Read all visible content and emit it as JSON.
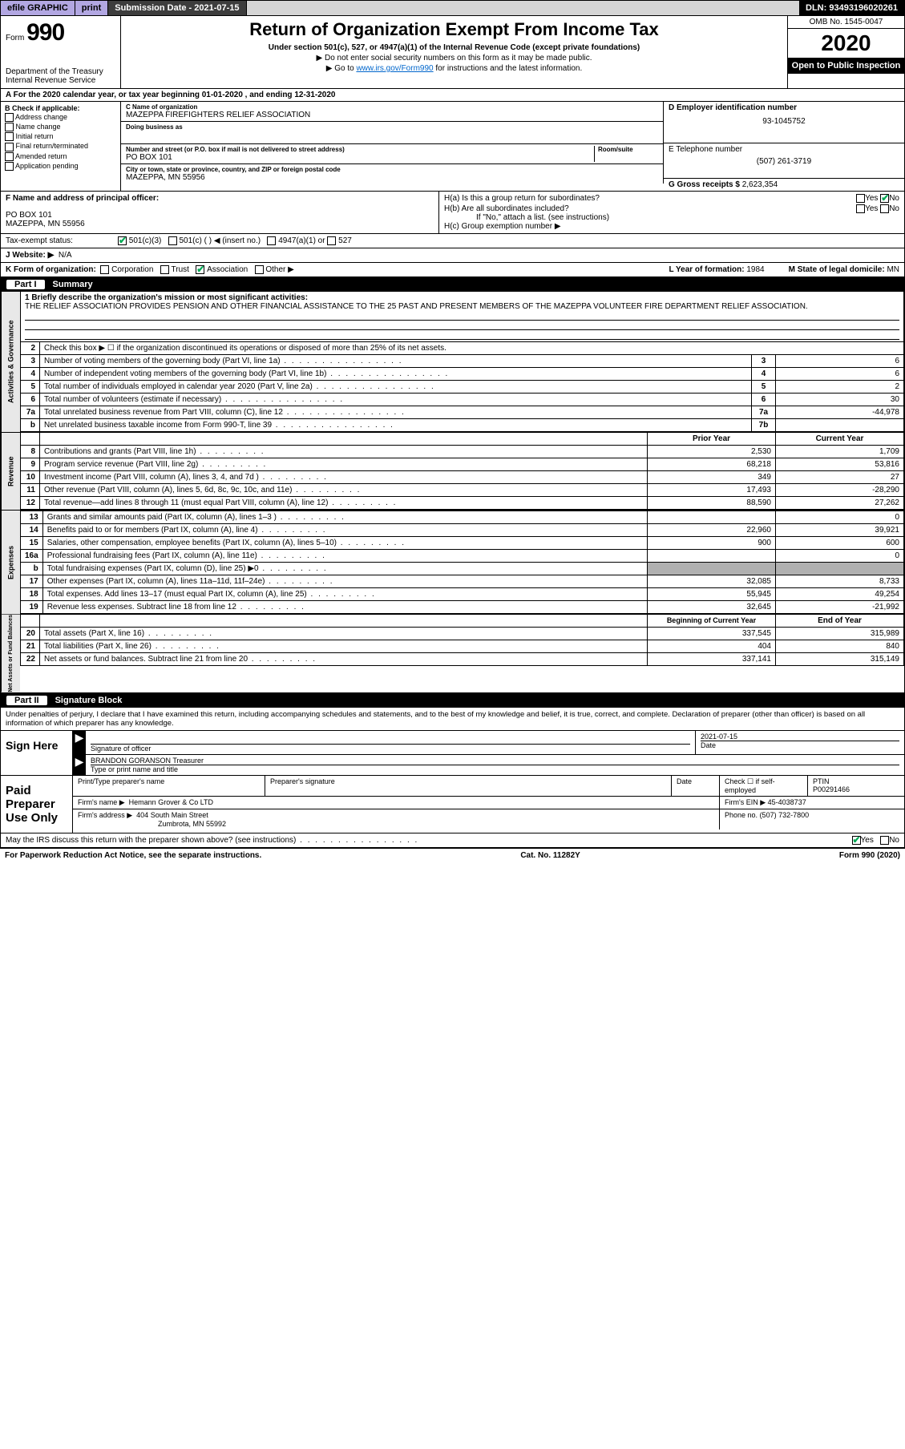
{
  "topbar": {
    "efile": "efile GRAPHIC",
    "print": "print",
    "submission": "Submission Date - 2021-07-15",
    "dln": "DLN: 93493196020261"
  },
  "header": {
    "form_label": "Form",
    "form_number": "990",
    "dept": "Department of the Treasury",
    "irs": "Internal Revenue Service",
    "title": "Return of Organization Exempt From Income Tax",
    "subtitle": "Under section 501(c), 527, or 4947(a)(1) of the Internal Revenue Code (except private foundations)",
    "note1": "▶ Do not enter social security numbers on this form as it may be made public.",
    "note2a": "▶ Go to ",
    "note2b": "www.irs.gov/Form990",
    "note2c": " for instructions and the latest information.",
    "omb": "OMB No. 1545-0047",
    "year": "2020",
    "open": "Open to Public Inspection"
  },
  "period": "A For the 2020 calendar year, or tax year beginning 01-01-2020    , and ending 12-31-2020",
  "colB": {
    "title": "B Check if applicable:",
    "items": [
      "Address change",
      "Name change",
      "Initial return",
      "Final return/terminated",
      "Amended return",
      "Application pending"
    ]
  },
  "orgblock": {
    "c_lbl": "C Name of organization",
    "c_val": "MAZEPPA FIREFIGHTERS RELIEF ASSOCIATION",
    "dba_lbl": "Doing business as",
    "addr_lbl": "Number and street (or P.O. box if mail is not delivered to street address)",
    "room_lbl": "Room/suite",
    "addr_val": "PO BOX 101",
    "city_lbl": "City or town, state or province, country, and ZIP or foreign postal code",
    "city_val": "MAZEPPA, MN  55956",
    "d_lbl": "D Employer identification number",
    "d_val": "93-1045752",
    "e_lbl": "E Telephone number",
    "e_val": "(507) 261-3719",
    "g_lbl": "G Gross receipts $",
    "g_val": "2,623,354"
  },
  "frow": {
    "f_lbl": "F  Name and address of principal officer:",
    "f_val1": "PO BOX 101",
    "f_val2": "MAZEPPA, MN  55956",
    "ha": "H(a)  Is this a group return for subordinates?",
    "hb": "H(b)  Are all subordinates included?",
    "hb_note": "If \"No,\" attach a list. (see instructions)",
    "hc": "H(c)  Group exemption number ▶",
    "yes": "Yes",
    "no": "No"
  },
  "status": {
    "lbl": "Tax-exempt status:",
    "a": "501(c)(3)",
    "b": "501(c) (   ) ◀ (insert no.)",
    "c": "4947(a)(1) or",
    "d": "527"
  },
  "website": {
    "lbl": "J   Website: ▶",
    "val": "N/A"
  },
  "korg": {
    "k": "K Form of organization:",
    "opts": [
      "Corporation",
      "Trust",
      "Association",
      "Other ▶"
    ],
    "l_lbl": "L Year of formation:",
    "l_val": "1984",
    "m_lbl": "M State of legal domicile:",
    "m_val": "MN"
  },
  "part1": {
    "num": "Part I",
    "title": "Summary"
  },
  "mission": {
    "lbl": "1  Briefly describe the organization's mission or most significant activities:",
    "text": "THE RELIEF ASSOCIATION PROVIDES PENSION AND OTHER FINANCIAL ASSISTANCE TO THE 25 PAST AND PRESENT MEMBERS OF THE MAZEPPA VOLUNTEER FIRE DEPARTMENT RELIEF ASSOCIATION."
  },
  "lines_ag": [
    {
      "n": "2",
      "t": "Check this box ▶ ☐  if the organization discontinued its operations or disposed of more than 25% of its net assets.",
      "box": "",
      "val": ""
    },
    {
      "n": "3",
      "t": "Number of voting members of the governing body (Part VI, line 1a)",
      "box": "3",
      "val": "6"
    },
    {
      "n": "4",
      "t": "Number of independent voting members of the governing body (Part VI, line 1b)",
      "box": "4",
      "val": "6"
    },
    {
      "n": "5",
      "t": "Total number of individuals employed in calendar year 2020 (Part V, line 2a)",
      "box": "5",
      "val": "2"
    },
    {
      "n": "6",
      "t": "Total number of volunteers (estimate if necessary)",
      "box": "6",
      "val": "30"
    },
    {
      "n": "7a",
      "t": "Total unrelated business revenue from Part VIII, column (C), line 12",
      "box": "7a",
      "val": "-44,978"
    },
    {
      "n": "b",
      "t": "Net unrelated business taxable income from Form 990-T, line 39",
      "box": "7b",
      "val": ""
    }
  ],
  "col_headers": {
    "prior": "Prior Year",
    "current": "Current Year"
  },
  "revenue": [
    {
      "n": "8",
      "t": "Contributions and grants (Part VIII, line 1h)",
      "p": "2,530",
      "c": "1,709"
    },
    {
      "n": "9",
      "t": "Program service revenue (Part VIII, line 2g)",
      "p": "68,218",
      "c": "53,816"
    },
    {
      "n": "10",
      "t": "Investment income (Part VIII, column (A), lines 3, 4, and 7d )",
      "p": "349",
      "c": "27"
    },
    {
      "n": "11",
      "t": "Other revenue (Part VIII, column (A), lines 5, 6d, 8c, 9c, 10c, and 11e)",
      "p": "17,493",
      "c": "-28,290"
    },
    {
      "n": "12",
      "t": "Total revenue—add lines 8 through 11 (must equal Part VIII, column (A), line 12)",
      "p": "88,590",
      "c": "27,262"
    }
  ],
  "expenses": [
    {
      "n": "13",
      "t": "Grants and similar amounts paid (Part IX, column (A), lines 1–3 )",
      "p": "",
      "c": "0"
    },
    {
      "n": "14",
      "t": "Benefits paid to or for members (Part IX, column (A), line 4)",
      "p": "22,960",
      "c": "39,921"
    },
    {
      "n": "15",
      "t": "Salaries, other compensation, employee benefits (Part IX, column (A), lines 5–10)",
      "p": "900",
      "c": "600"
    },
    {
      "n": "16a",
      "t": "Professional fundraising fees (Part IX, column (A), line 11e)",
      "p": "",
      "c": "0"
    },
    {
      "n": "b",
      "t": "Total fundraising expenses (Part IX, column (D), line 25) ▶0",
      "p": "SHADE",
      "c": "SHADE"
    },
    {
      "n": "17",
      "t": "Other expenses (Part IX, column (A), lines 11a–11d, 11f–24e)",
      "p": "32,085",
      "c": "8,733"
    },
    {
      "n": "18",
      "t": "Total expenses. Add lines 13–17 (must equal Part IX, column (A), line 25)",
      "p": "55,945",
      "c": "49,254"
    },
    {
      "n": "19",
      "t": "Revenue less expenses. Subtract line 18 from line 12",
      "p": "32,645",
      "c": "-21,992"
    }
  ],
  "na_headers": {
    "beg": "Beginning of Current Year",
    "end": "End of Year"
  },
  "netassets": [
    {
      "n": "20",
      "t": "Total assets (Part X, line 16)",
      "p": "337,545",
      "c": "315,989"
    },
    {
      "n": "21",
      "t": "Total liabilities (Part X, line 26)",
      "p": "404",
      "c": "840"
    },
    {
      "n": "22",
      "t": "Net assets or fund balances. Subtract line 21 from line 20",
      "p": "337,141",
      "c": "315,149"
    }
  ],
  "sidetabs": {
    "ag": "Activities & Governance",
    "rev": "Revenue",
    "exp": "Expenses",
    "na": "Net Assets or Fund Balances"
  },
  "part2": {
    "num": "Part II",
    "title": "Signature Block"
  },
  "sig_intro": "Under penalties of perjury, I declare that I have examined this return, including accompanying schedules and statements, and to the best of my knowledge and belief, it is true, correct, and complete. Declaration of preparer (other than officer) is based on all information of which preparer has any knowledge.",
  "sign": {
    "here": "Sign Here",
    "officer_lbl": "Signature of officer",
    "date_lbl": "Date",
    "date_val": "2021-07-15",
    "name": "BRANDON GORANSON Treasurer",
    "name_lbl": "Type or print name and title"
  },
  "paid": {
    "label": "Paid Preparer Use Only",
    "h1": "Print/Type preparer's name",
    "h2": "Preparer's signature",
    "h3": "Date",
    "h4": "Check ☐ if self-employed",
    "h5": "PTIN",
    "ptin": "P00291466",
    "firm_lbl": "Firm's name    ▶",
    "firm": "Hemann Grover & Co LTD",
    "ein_lbl": "Firm's EIN ▶",
    "ein": "45-4038737",
    "addr_lbl": "Firm's address ▶",
    "addr1": "404 South Main Street",
    "addr2": "Zumbrota, MN  55992",
    "phone_lbl": "Phone no.",
    "phone": "(507) 732-7800"
  },
  "discuss": "May the IRS discuss this return with the preparer shown above? (see instructions)",
  "footer": {
    "l": "For Paperwork Reduction Act Notice, see the separate instructions.",
    "m": "Cat. No. 11282Y",
    "r": "Form 990 (2020)"
  }
}
